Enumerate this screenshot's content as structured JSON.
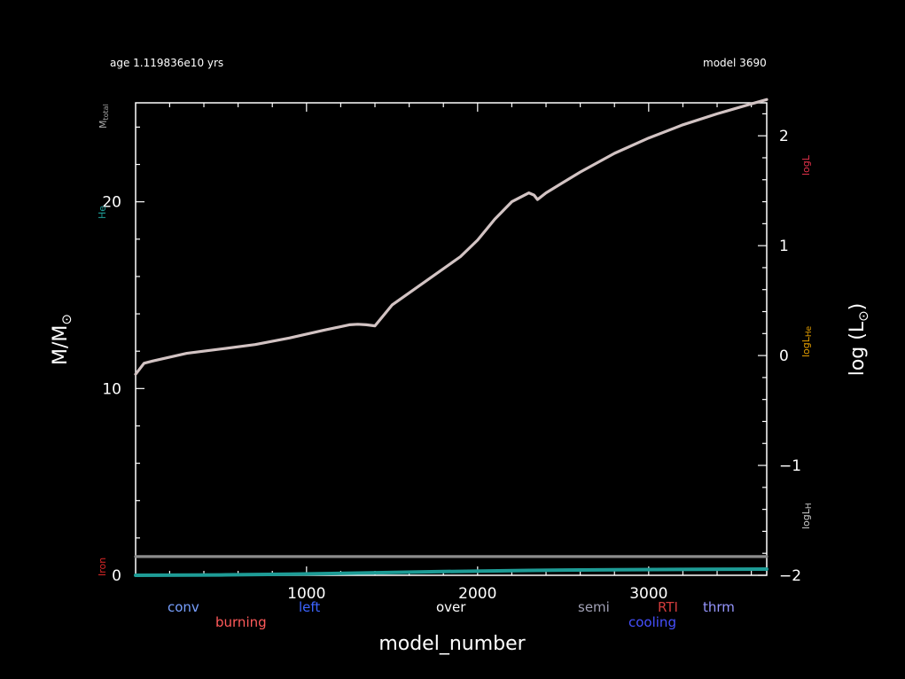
{
  "header": {
    "age_text": "age 1.119836e10 yrs",
    "model_text": "model 3690"
  },
  "colors": {
    "background": "#000000",
    "axes": "#ffffff",
    "luminosity": "#d2c3c3",
    "he_core": "#1e9c96",
    "iron_core": "#8c8c8c",
    "total_mass_label": "#aaaaaa",
    "he_label": "#1e9c96",
    "logL_label": "#e6324b",
    "logLHe_label": "#e6a000",
    "logLH_label": "#cccccc",
    "iron_label": "#dc2828"
  },
  "side_labels": {
    "m_total": "M",
    "m_total_sub": "total",
    "he": "He",
    "iron": "Iron",
    "logL": "logL",
    "logLHe": "logL",
    "logLHe_sub": "He",
    "logLH": "logL",
    "logLH_sub": "H"
  },
  "mixing_legend": [
    {
      "label": "conv",
      "color": "#78a0ff"
    },
    {
      "label": "burning",
      "color": "#ff5a5a"
    },
    {
      "label": "left",
      "color": "#3c64ff"
    },
    {
      "label": "over",
      "color": "#ffffff"
    },
    {
      "label": "semi",
      "color": "#a0a0b4"
    },
    {
      "label": "RTI",
      "color": "#d23c3c"
    },
    {
      "label": "cooling",
      "color": "#4650ff"
    },
    {
      "label": "thrm",
      "color": "#9696ff"
    }
  ],
  "chart_data": {
    "type": "line",
    "xlabel": "model_number",
    "ylabel_left": "M/M",
    "ylabel_right": "log (L",
    "ylabel_right_close": ")",
    "xlim": [
      1,
      3690
    ],
    "ylim_left": [
      0,
      25.3
    ],
    "ylim_right": [
      -2,
      2.3
    ],
    "x_ticks": [
      1000,
      2000,
      3000
    ],
    "y_left_ticks": [
      0,
      10,
      20
    ],
    "y_right_ticks": [
      -2,
      -1,
      0,
      1,
      2
    ],
    "grid": false,
    "series": [
      {
        "axis": "right",
        "x": [
          1,
          50,
          100,
          300,
          500,
          700,
          900,
          1100,
          1250,
          1300,
          1350,
          1400,
          1500,
          1700,
          1900,
          2000,
          2100,
          2200,
          2300,
          2330,
          2350,
          2400,
          2600,
          2800,
          3000,
          3200,
          3400,
          3600,
          3690
        ],
        "values": [
          -0.17,
          -0.07,
          -0.05,
          0.02,
          0.06,
          0.1,
          0.16,
          0.23,
          0.28,
          0.285,
          0.28,
          0.27,
          0.46,
          0.68,
          0.9,
          1.05,
          1.24,
          1.4,
          1.48,
          1.46,
          1.42,
          1.48,
          1.67,
          1.84,
          1.98,
          2.1,
          2.2,
          2.29,
          2.33
        ]
      },
      {
        "axis": "left",
        "x": [
          1,
          500,
          900,
          1300,
          1800,
          2300,
          2800,
          3300,
          3690
        ],
        "values": [
          0.0,
          0.02,
          0.06,
          0.12,
          0.2,
          0.26,
          0.3,
          0.32,
          0.33
        ]
      },
      {
        "axis": "left",
        "x": [
          1,
          3690
        ],
        "values": [
          1.0,
          1.0
        ]
      }
    ]
  }
}
